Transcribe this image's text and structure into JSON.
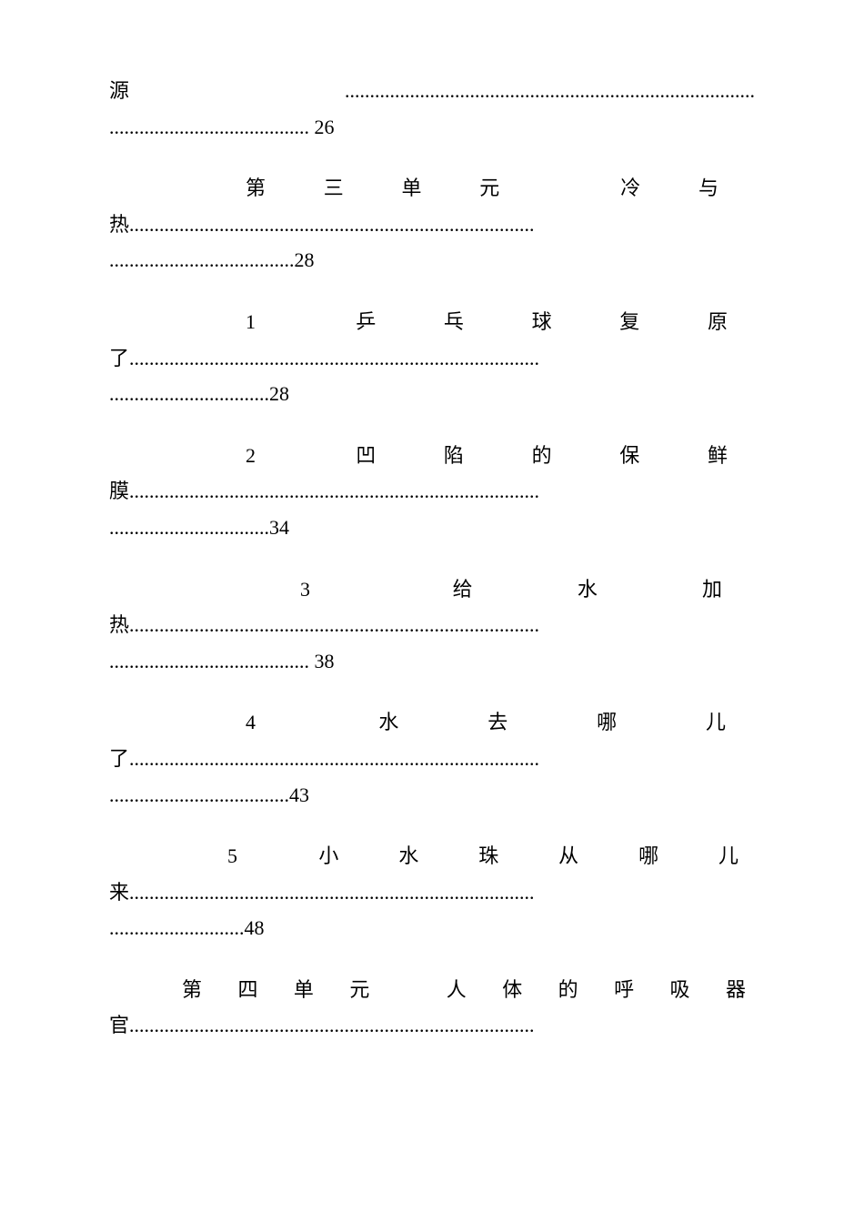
{
  "entries": [
    {
      "line1_text": "源",
      "line1_dots": "..................................................................................",
      "line2_dots": "........................................",
      "line2_page": " 26",
      "line1_class": "",
      "line1_spacing": "0px"
    },
    {
      "line1_text": "第三单元  冷与",
      "line1_dots": "",
      "line2_prefix": "热",
      "line2_dots": ".................................................................................",
      "line3_dots": ".....................................",
      "line3_page": "28",
      "line1_class": "indent-unit",
      "line1_spacing": "40px"
    },
    {
      "line1_text": "1   乒乓球复原",
      "line1_dots": "",
      "line2_prefix": "了",
      "line2_dots": "..................................................................................",
      "line3_dots": "................................",
      "line3_page": "28",
      "line1_class": "indent-lesson",
      "line1_spacing": "30px"
    },
    {
      "line1_text": "2   凹陷的保鲜",
      "line1_dots": "",
      "line2_prefix": "膜",
      "line2_dots": "..................................................................................",
      "line3_dots": "................................",
      "line3_page": "34",
      "line1_class": "indent-lesson",
      "line1_spacing": "30px"
    },
    {
      "line1_text": "3    给水加",
      "line1_dots": "",
      "line2_prefix": "热",
      "line2_dots": "..................................................................................",
      "line3_dots": "........................................",
      "line3_page": " 38",
      "line1_class": "indent-lesson3",
      "line1_spacing": "36px"
    },
    {
      "line1_text": "4    水去哪儿",
      "line1_dots": "",
      "line2_prefix": "了",
      "line2_dots": "..................................................................................",
      "line3_dots": "....................................",
      "line3_page": "43",
      "line1_class": "indent-lesson",
      "line1_spacing": "32px"
    },
    {
      "line1_text": "5   小水珠从哪儿",
      "line1_dots": "",
      "line2_prefix": "来",
      "line2_dots": ".................................................................................",
      "line3_dots": "...........................",
      "line3_page": "48",
      "line1_class": "indent-lesson5",
      "line1_spacing": "18px"
    },
    {
      "line1_text": "第四单元  人体的呼吸器",
      "line1_dots": "",
      "line2_prefix": "官",
      "line2_dots": ".................................................................................",
      "line3_dots": "",
      "line3_page": "",
      "line1_class": "indent-unit4",
      "line1_spacing": "10px"
    }
  ]
}
